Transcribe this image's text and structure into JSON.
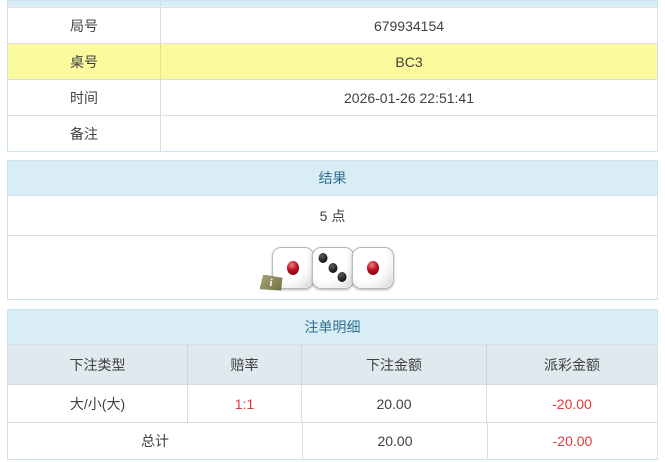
{
  "info_table": {
    "rows": [
      {
        "label": "局号",
        "value": "679934154"
      },
      {
        "label": "桌号",
        "value": "BC3"
      },
      {
        "label": "时间",
        "value": "2026-01-26 22:51:41"
      },
      {
        "label": "备注",
        "value": ""
      }
    ]
  },
  "result_panel": {
    "title": "结果",
    "points": "5 点",
    "dice": [
      1,
      3,
      1
    ],
    "info_badge": "i"
  },
  "bets_panel": {
    "title": "注单明细",
    "columns": [
      "下注类型",
      "赔率",
      "下注金额",
      "派彩金额"
    ],
    "rows": [
      {
        "bet_type": "大/小(大)",
        "odds": "1:1",
        "bet_amount": "20.00",
        "payout": "-20.00"
      }
    ],
    "total": {
      "label": "总计",
      "bet_amount": "20.00",
      "payout": "-20.00"
    }
  },
  "colors": {
    "panel_heading_bg": "#d9edf7",
    "panel_heading_text": "#31708f",
    "highlight_row_bg": "#fbfb9e",
    "table_header_bg": "#dfe9ee",
    "negative_text": "#e4393c",
    "body_text": "#404040",
    "outer_border": "#cde4ee",
    "inner_border": "#dddddd"
  }
}
